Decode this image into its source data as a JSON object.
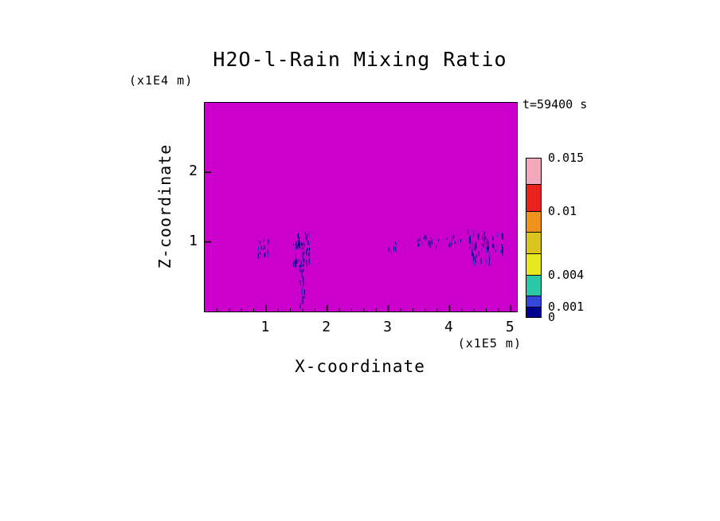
{
  "chart_data": {
    "type": "heatmap",
    "title": "H2O-l-Rain Mixing Ratio",
    "time_label": "t=59400 s",
    "xlabel": "X-coordinate",
    "x_unit": "(x1E5 m)",
    "ylabel": "Z-coordinate",
    "y_unit": "(x1E4 m)",
    "xlim": [
      0,
      5.1
    ],
    "zlim": [
      0,
      3.0
    ],
    "x_ticks": [
      1,
      2,
      3,
      4,
      5
    ],
    "z_ticks": [
      1,
      2
    ],
    "field": {
      "background_color": "#CC00CC",
      "background_meaning": "rain mixing ratio near zero (below first contour level) over most of domain",
      "streak_color": "#000080"
    },
    "rain_clusters": [
      {
        "x": 0.97,
        "z": 0.95,
        "w": 0.2,
        "h": 0.28,
        "n": 14,
        "len": 5
      },
      {
        "x": 1.58,
        "z": 0.92,
        "w": 0.26,
        "h": 0.5,
        "n": 42,
        "len": 8
      },
      {
        "x": 1.6,
        "z": 0.42,
        "w": 0.1,
        "h": 0.6,
        "n": 14,
        "len": 12
      },
      {
        "x": 3.07,
        "z": 0.95,
        "w": 0.16,
        "h": 0.16,
        "n": 8,
        "len": 4
      },
      {
        "x": 3.66,
        "z": 1.0,
        "w": 0.38,
        "h": 0.2,
        "n": 18,
        "len": 5
      },
      {
        "x": 4.08,
        "z": 1.03,
        "w": 0.28,
        "h": 0.18,
        "n": 13,
        "len": 5
      },
      {
        "x": 4.48,
        "z": 0.97,
        "w": 0.36,
        "h": 0.44,
        "n": 44,
        "len": 9
      },
      {
        "x": 4.8,
        "z": 1.0,
        "w": 0.24,
        "h": 0.26,
        "n": 16,
        "len": 6
      }
    ],
    "colorbar": {
      "levels": [
        0,
        0.001,
        0.002,
        0.004,
        0.006,
        0.008,
        0.01,
        0.0125,
        0.015
      ],
      "colors": [
        "#000090",
        "#3348D8",
        "#2BC8A8",
        "#E8E822",
        "#DCC41E",
        "#F0921E",
        "#E8231E",
        "#F2A8BC"
      ],
      "tick_labels": [
        "0",
        "0.001",
        "0.004",
        "0.01",
        "0.015"
      ],
      "tick_values": [
        0,
        0.001,
        0.004,
        0.01,
        0.015
      ]
    }
  }
}
